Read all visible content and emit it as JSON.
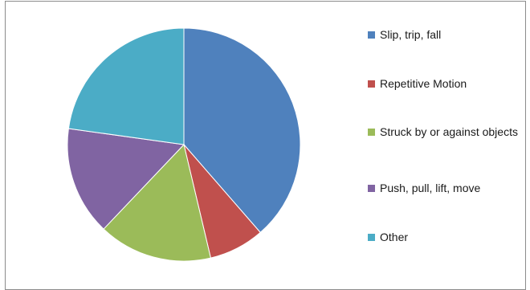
{
  "chart_data": {
    "type": "pie",
    "title": "",
    "slices": [
      {
        "label": "Slip, trip, fall",
        "value": 38.6,
        "color": "#4f81bd"
      },
      {
        "label": "Repetitive Motion",
        "value": 7.7,
        "color": "#c0504d"
      },
      {
        "label": "Struck by or against objects",
        "value": 15.8,
        "color": "#9bbb59"
      },
      {
        "label": "Push, pull, lift, move",
        "value": 15.1,
        "color": "#8064a2"
      },
      {
        "label": "Other",
        "value": 22.8,
        "color": "#4bacc6"
      }
    ],
    "legend_position": "right",
    "start_angle": "12 o'clock, clockwise"
  }
}
